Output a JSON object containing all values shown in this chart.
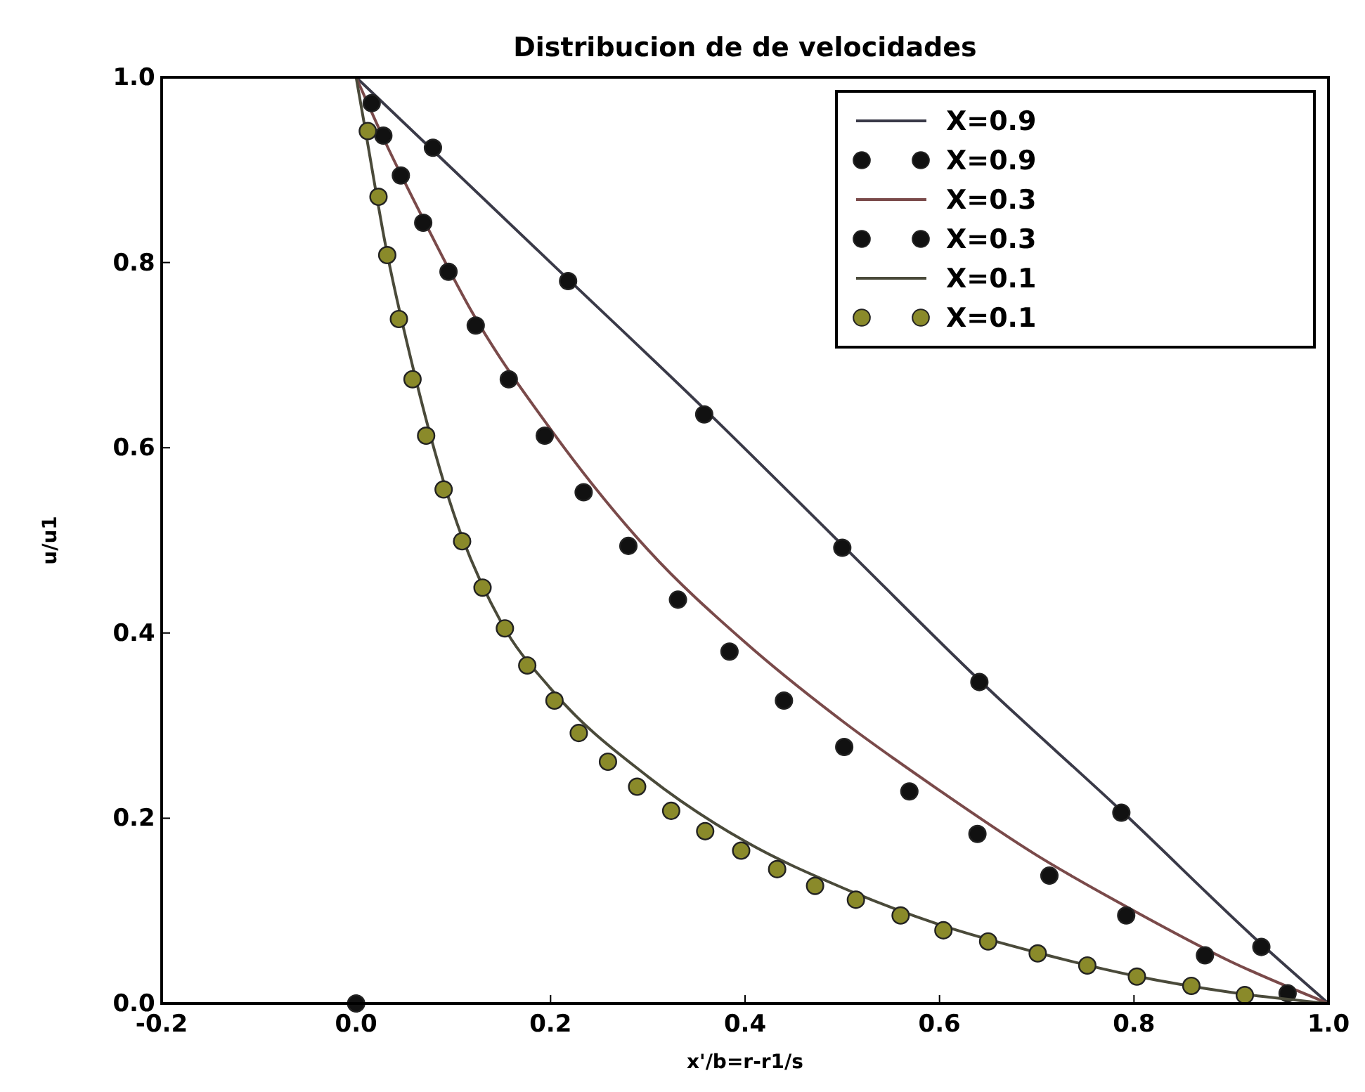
{
  "chart_data": {
    "type": "line",
    "title": "Distribucion de  de velocidades",
    "xlabel": "x'/b=r-r1/s",
    "ylabel": "u/u1",
    "xlim": [
      -0.2,
      1.0
    ],
    "ylim": [
      0,
      1.0
    ],
    "xticks": [
      {
        "value": -0.2,
        "label": "-0.2"
      },
      {
        "value": 0,
        "label": "0.0"
      },
      {
        "value": 0.2,
        "label": "0.2"
      },
      {
        "value": 0.4,
        "label": "0.4"
      },
      {
        "value": 0.6,
        "label": "0.6"
      },
      {
        "value": 0.8,
        "label": "0.8"
      },
      {
        "value": 1.0,
        "label": "1.0"
      }
    ],
    "yticks": [
      {
        "value": 0,
        "label": "0.0"
      },
      {
        "value": 0.2,
        "label": "0.2"
      },
      {
        "value": 0.4,
        "label": "0.4"
      },
      {
        "value": 0.6,
        "label": "0.6"
      },
      {
        "value": 0.8,
        "label": "0.8"
      },
      {
        "value": 1.0,
        "label": "1.0"
      }
    ],
    "grid": false,
    "legend": "top right",
    "line_style": "solid",
    "series": [
      {
        "name": "X=0.9",
        "marker": "none",
        "color": "#3a3a48",
        "x": [
          0,
          0.2,
          0.36,
          0.5,
          0.64,
          0.79,
          0.93,
          1.0
        ],
        "values": [
          1.0,
          0.8,
          0.64,
          0.495,
          0.35,
          0.205,
          0.065,
          0
        ]
      },
      {
        "name": "X=0.9",
        "type": "scatter",
        "marker": "circle",
        "color": "#111111",
        "x": [
          0,
          0.014,
          0.079,
          0.218,
          0.358,
          0.5,
          0.641,
          0.787,
          0.931
        ],
        "values": [
          0,
          null,
          0.924,
          0.78,
          0.636,
          0.492,
          0.347,
          0.206,
          0.061
        ]
      },
      {
        "name": "X=0.3",
        "marker": "none",
        "color": "#7a4a4a",
        "x": [
          0,
          0.03,
          0.07,
          0.12,
          0.2,
          0.3,
          0.4,
          0.5,
          0.6,
          0.7,
          0.8,
          0.9,
          1.0
        ],
        "values": [
          1.0,
          0.93,
          0.845,
          0.745,
          0.62,
          0.49,
          0.39,
          0.305,
          0.23,
          0.16,
          0.1,
          0.045,
          0
        ]
      },
      {
        "name": "X=0.3",
        "type": "scatter",
        "marker": "circle",
        "color": "#111111",
        "x": [
          0.016,
          0.028,
          0.046,
          0.069,
          0.095,
          0.123,
          0.157,
          0.194,
          0.234,
          0.28,
          0.331,
          0.384,
          0.44,
          0.502,
          0.569,
          0.639,
          0.713,
          0.792,
          0.873,
          0.958
        ],
        "values": [
          0.972,
          0.937,
          0.894,
          0.843,
          0.79,
          0.732,
          0.674,
          0.613,
          0.552,
          0.494,
          0.436,
          0.38,
          0.327,
          0.277,
          0.229,
          0.183,
          0.138,
          0.095,
          0.052,
          0.011
        ]
      },
      {
        "name": "X=0.1",
        "marker": "none",
        "color": "#4a4a3a",
        "x": [
          0,
          0.01,
          0.03,
          0.06,
          0.1,
          0.15,
          0.2,
          0.3,
          0.4,
          0.5,
          0.6,
          0.7,
          0.8,
          0.9,
          1.0
        ],
        "values": [
          1.0,
          0.94,
          0.82,
          0.68,
          0.53,
          0.41,
          0.34,
          0.245,
          0.175,
          0.125,
          0.085,
          0.055,
          0.03,
          0.012,
          0
        ]
      },
      {
        "name": "X=0.1",
        "type": "scatter",
        "marker": "circle",
        "color": "#8a8a2a",
        "x": [
          0.012,
          0.023,
          0.032,
          0.044,
          0.058,
          0.072,
          0.09,
          0.109,
          0.13,
          0.153,
          0.176,
          0.204,
          0.229,
          0.259,
          0.289,
          0.324,
          0.359,
          0.396,
          0.433,
          0.472,
          0.514,
          0.56,
          0.604,
          0.65,
          0.701,
          0.752,
          0.803,
          0.859,
          0.914
        ],
        "values": [
          0.942,
          0.871,
          0.808,
          0.739,
          0.674,
          0.613,
          0.555,
          0.499,
          0.449,
          0.405,
          0.365,
          0.327,
          0.292,
          0.261,
          0.234,
          0.208,
          0.186,
          0.165,
          0.145,
          0.127,
          0.112,
          0.095,
          0.079,
          0.067,
          0.054,
          0.041,
          0.029,
          0.019,
          0.009
        ]
      }
    ]
  }
}
